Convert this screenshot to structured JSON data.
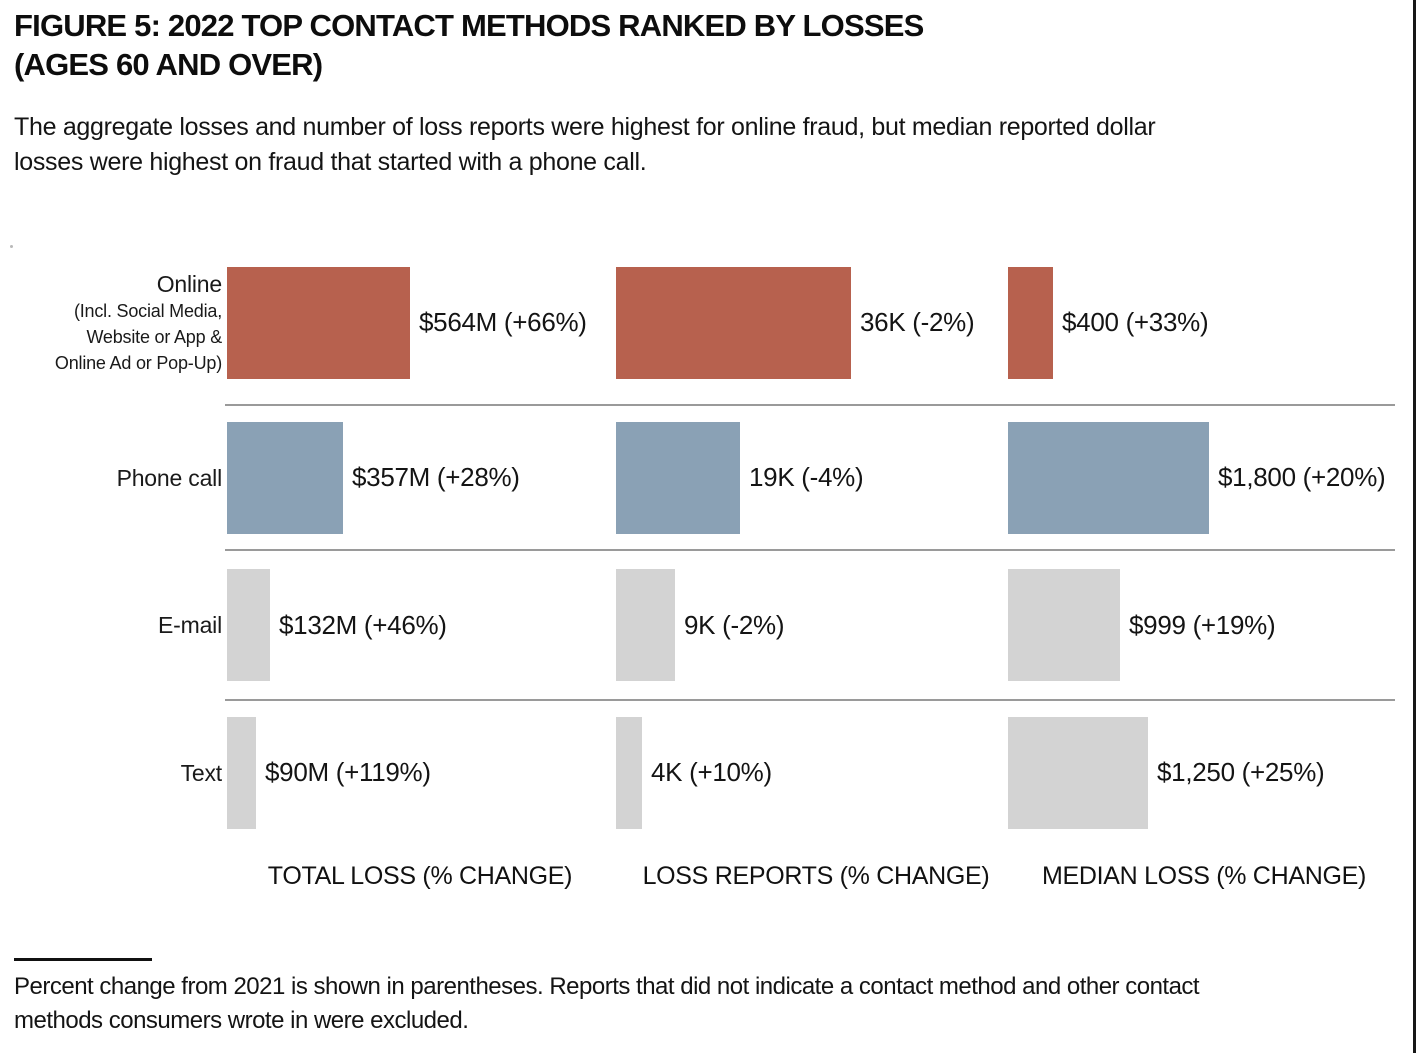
{
  "figure": {
    "title_line1": "FIGURE 5: 2022 TOP CONTACT METHODS RANKED BY LOSSES",
    "title_line2": "(AGES 60 AND OVER)",
    "subtitle_line1": "The aggregate losses and number of loss reports were highest for online fraud, but median reported dollar",
    "subtitle_line2": "losses were highest on fraud that started with a phone call."
  },
  "chart_data": {
    "type": "bar",
    "orientation": "horizontal",
    "categories": [
      "Online",
      "Phone call",
      "E-mail",
      "Text"
    ],
    "category_sublabels": {
      "online_line1": "(Incl. Social Media,",
      "online_line2": "Website or App &",
      "online_line3": "Online Ad or Pop-Up)"
    },
    "series": [
      {
        "name": "TOTAL LOSS (% CHANGE)",
        "values": [
          564,
          357,
          132,
          90
        ],
        "axis_max": 564,
        "value_labels": [
          "$564M (+66%)",
          "$357M (+28%)",
          "$132M (+46%)",
          "$90M (+119%)"
        ]
      },
      {
        "name": "LOSS REPORTS (% CHANGE)",
        "values": [
          36,
          19,
          9,
          4
        ],
        "axis_max": 36,
        "value_labels": [
          "36K (-2%)",
          "19K (-4%)",
          "9K (-2%)",
          "4K (+10%)"
        ]
      },
      {
        "name": "MEDIAN LOSS (% CHANGE)",
        "values": [
          400,
          1800,
          999,
          1250
        ],
        "axis_max": 1800,
        "value_labels": [
          "$400 (+33%)",
          "$1,800 (+20%)",
          "$999 (+19%)",
          "$1,250 (+25%)"
        ]
      }
    ],
    "row_colors": [
      "#b7614e",
      "#8aa1b5",
      "#d3d3d3",
      "#d3d3d3"
    ],
    "legend_position": "none",
    "grid": "row-dividers-only"
  },
  "colors": {
    "online_bar": "#b7614e",
    "phone_bar": "#8aa1b5",
    "gray_bar": "#d3d3d3",
    "divider": "#9a9a9a"
  },
  "footnote": {
    "line1": "Percent change from 2021 is shown in parentheses. Reports that did not indicate a contact method and other contact",
    "line2": "methods consumers wrote in were excluded."
  }
}
